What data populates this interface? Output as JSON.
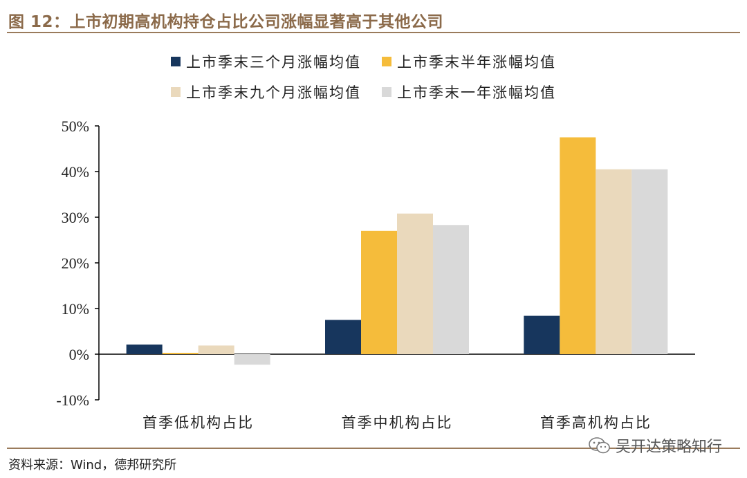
{
  "header": {
    "title": "图 12：上市初期高机构持仓占比公司涨幅显著高于其他公司"
  },
  "footer": {
    "source": "资料来源：Wind，德邦研究所",
    "watermark": "吴开达策略知行"
  },
  "colors": {
    "rule": "#9a7b5c",
    "series": [
      "#17365d",
      "#f5bc3b",
      "#ead9bc",
      "#d9d9d9"
    ]
  },
  "chart_data": {
    "type": "bar",
    "categories": [
      "首季低机构占比",
      "首季中机构占比",
      "首季高机构占比"
    ],
    "series": [
      {
        "name": "上市季末三个月涨幅均值",
        "values": [
          2.1,
          7.5,
          8.4
        ]
      },
      {
        "name": "上市季末半年涨幅均值",
        "values": [
          0.3,
          27.0,
          47.5
        ]
      },
      {
        "name": "上市季末九个月涨幅均值",
        "values": [
          1.9,
          30.8,
          40.5
        ]
      },
      {
        "name": "上市季末一年涨幅均值",
        "values": [
          -2.3,
          28.3,
          40.5
        ]
      }
    ],
    "ylim": [
      -10,
      50
    ],
    "yticks": [
      -10,
      0,
      10,
      20,
      30,
      40,
      50
    ],
    "ytick_format": "percent",
    "legend_position": "top",
    "grid": false
  }
}
